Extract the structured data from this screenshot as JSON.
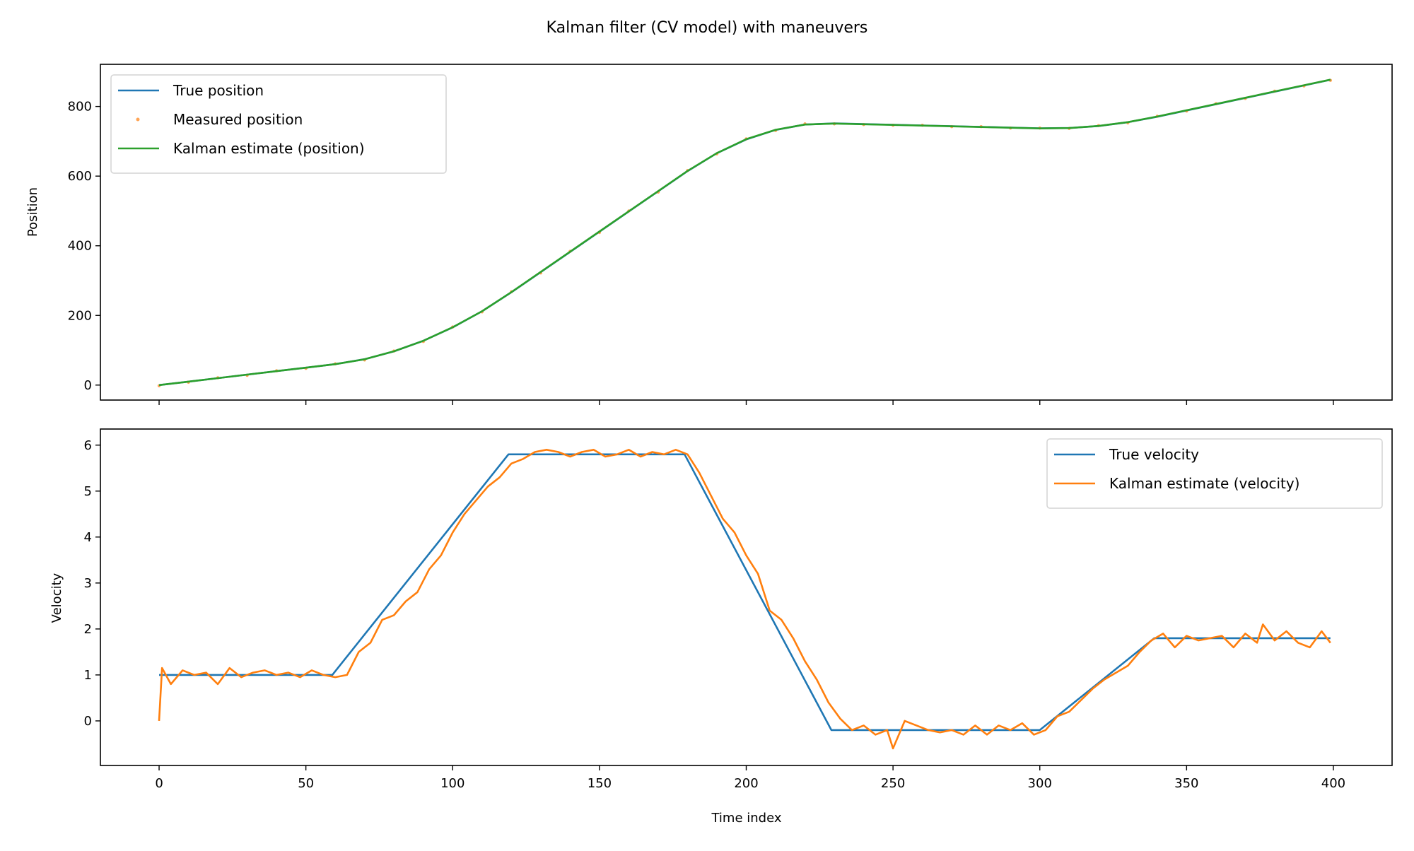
{
  "title": "Kalman filter (CV model) with maneuvers",
  "colors": {
    "blue": "#1f77b4",
    "orange": "#ff7f0e",
    "green": "#2ca02c"
  },
  "chart_data": [
    {
      "type": "line",
      "ylabel": "Position",
      "xlim": [
        -20,
        420
      ],
      "ylim": [
        -43,
        921
      ],
      "yticks": [
        0,
        200,
        400,
        600,
        800
      ],
      "xticks": [
        0,
        50,
        100,
        150,
        200,
        250,
        300,
        350,
        400
      ],
      "grid": false,
      "legend": "top-left",
      "x": [
        0,
        10,
        20,
        30,
        40,
        50,
        60,
        70,
        80,
        90,
        100,
        110,
        120,
        130,
        140,
        150,
        160,
        170,
        180,
        190,
        200,
        210,
        220,
        230,
        240,
        250,
        260,
        270,
        280,
        290,
        300,
        310,
        320,
        330,
        340,
        350,
        360,
        370,
        380,
        390,
        399
      ],
      "series": [
        {
          "name": "True position",
          "style": "line",
          "color": "#1f77b4",
          "values": [
            0,
            10,
            20,
            30,
            40,
            50,
            60,
            74.4,
            96.8,
            127.2,
            165.6,
            212,
            266.4,
            324.4,
            382.4,
            440.4,
            498.4,
            556.4,
            614.4,
            665.8,
            705.2,
            732.6,
            748,
            751.4,
            749.4,
            747.4,
            745.4,
            743.4,
            741.4,
            739.4,
            737.4,
            738.2,
            743.9,
            754.7,
            770.4,
            788.4,
            806.4,
            824.4,
            842.4,
            860.4,
            876.6
          ]
        },
        {
          "name": "Measured position",
          "style": "dots",
          "color": "#ff7f0e",
          "values": [
            -2,
            8,
            21,
            28,
            41,
            48,
            61,
            72,
            98,
            125,
            167,
            210,
            268,
            322,
            384,
            438,
            500,
            554,
            616,
            664,
            707,
            731,
            750,
            750,
            748,
            746,
            746,
            742,
            742,
            738,
            738,
            737,
            745,
            753,
            772,
            787,
            808,
            823,
            844,
            859,
            875
          ]
        },
        {
          "name": "Kalman estimate (position)",
          "style": "line",
          "color": "#2ca02c",
          "values": [
            0,
            10,
            20,
            30,
            40,
            50,
            60,
            74,
            97,
            127,
            166,
            212,
            267,
            325,
            383,
            441,
            499,
            557,
            615,
            666,
            706,
            733,
            748,
            751,
            749,
            747,
            745,
            743,
            741,
            739,
            737,
            738,
            744,
            755,
            771,
            789,
            807,
            825,
            843,
            861,
            877
          ]
        }
      ]
    },
    {
      "type": "line",
      "ylabel": "Velocity",
      "xlabel": "Time index",
      "xlim": [
        -20,
        420
      ],
      "ylim": [
        -0.97,
        6.35
      ],
      "yticks": [
        0,
        1,
        2,
        3,
        4,
        5,
        6
      ],
      "xticks": [
        0,
        50,
        100,
        150,
        200,
        250,
        300,
        350,
        400
      ],
      "grid": false,
      "legend": "top-right",
      "series": [
        {
          "name": "True velocity",
          "color": "#1f77b4",
          "x": [
            0,
            59,
            119,
            179,
            229,
            300,
            339,
            399
          ],
          "values": [
            1,
            1,
            5.8,
            5.8,
            -0.2,
            -0.2,
            1.8,
            1.8
          ]
        },
        {
          "name": "Kalman estimate (velocity)",
          "color": "#ff7f0e",
          "x": [
            0,
            1,
            4,
            8,
            12,
            16,
            20,
            24,
            28,
            32,
            36,
            40,
            44,
            48,
            52,
            56,
            60,
            64,
            68,
            72,
            76,
            80,
            84,
            88,
            92,
            96,
            100,
            104,
            108,
            112,
            116,
            120,
            124,
            128,
            132,
            136,
            140,
            144,
            148,
            152,
            156,
            160,
            164,
            168,
            172,
            176,
            180,
            184,
            188,
            192,
            196,
            200,
            204,
            208,
            212,
            216,
            220,
            224,
            228,
            232,
            236,
            240,
            244,
            248,
            250,
            254,
            258,
            262,
            266,
            270,
            274,
            278,
            282,
            286,
            290,
            294,
            298,
            302,
            306,
            310,
            314,
            318,
            322,
            326,
            330,
            334,
            338,
            342,
            346,
            350,
            354,
            358,
            362,
            366,
            370,
            374,
            376,
            380,
            384,
            388,
            392,
            396,
            399
          ],
          "values": [
            0,
            1.15,
            0.8,
            1.1,
            1.0,
            1.05,
            0.8,
            1.15,
            0.95,
            1.05,
            1.1,
            1.0,
            1.05,
            0.95,
            1.1,
            1.0,
            0.95,
            1.0,
            1.5,
            1.7,
            2.2,
            2.3,
            2.6,
            2.8,
            3.3,
            3.6,
            4.1,
            4.5,
            4.8,
            5.1,
            5.3,
            5.6,
            5.7,
            5.85,
            5.9,
            5.85,
            5.75,
            5.85,
            5.9,
            5.75,
            5.8,
            5.9,
            5.75,
            5.85,
            5.8,
            5.9,
            5.8,
            5.4,
            4.9,
            4.4,
            4.1,
            3.6,
            3.2,
            2.4,
            2.2,
            1.8,
            1.3,
            0.9,
            0.4,
            0.05,
            -0.2,
            -0.1,
            -0.3,
            -0.2,
            -0.6,
            0.0,
            -0.1,
            -0.2,
            -0.25,
            -0.2,
            -0.3,
            -0.1,
            -0.3,
            -0.1,
            -0.2,
            -0.05,
            -0.3,
            -0.2,
            0.1,
            0.2,
            0.45,
            0.7,
            0.9,
            1.05,
            1.2,
            1.5,
            1.75,
            1.9,
            1.6,
            1.85,
            1.75,
            1.8,
            1.85,
            1.6,
            1.9,
            1.7,
            2.1,
            1.75,
            1.95,
            1.7,
            1.6,
            1.95,
            1.7
          ]
        }
      ]
    }
  ]
}
